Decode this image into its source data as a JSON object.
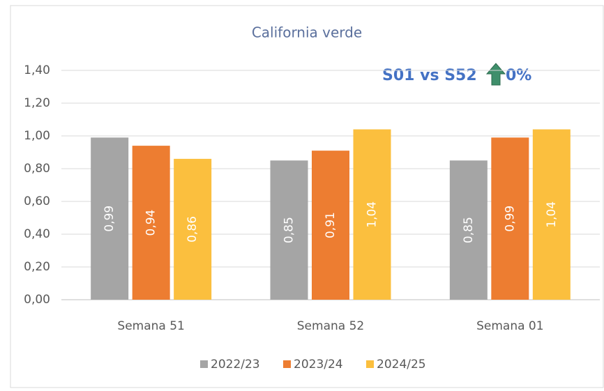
{
  "chart_data": {
    "type": "bar",
    "title": "California verde",
    "annotation": [
      "S01 vs S52",
      "0%"
    ],
    "categories": [
      "Semana 51",
      "Semana 52",
      "Semana 01"
    ],
    "series": [
      {
        "name": "2022/23",
        "color": "#a5a5a5",
        "values": [
          0.99,
          0.85,
          0.85
        ],
        "value_labels": [
          "0,99",
          "0,85",
          "0,85"
        ]
      },
      {
        "name": "2023/24",
        "color": "#ed7d31",
        "values": [
          0.94,
          0.91,
          0.99
        ],
        "value_labels": [
          "0,94",
          "0,91",
          "0,99"
        ]
      },
      {
        "name": "2024/25",
        "color": "#fbbf3e",
        "values": [
          0.86,
          1.04,
          1.04
        ],
        "value_labels": [
          "0,86",
          "1,04",
          "1,04"
        ]
      }
    ],
    "ylim": [
      0,
      1.4
    ],
    "yticks": [
      {
        "value": 0,
        "label": "0,00"
      },
      {
        "value": 0.2,
        "label": "0,20"
      },
      {
        "value": 0.4,
        "label": "0,40"
      },
      {
        "value": 0.6,
        "label": "0,60"
      },
      {
        "value": 0.8,
        "label": "0,80"
      },
      {
        "value": 1.0,
        "label": "1,00"
      },
      {
        "value": 1.2,
        "label": "1,20"
      },
      {
        "value": 1.4,
        "label": "1,40"
      }
    ],
    "grid": true
  }
}
